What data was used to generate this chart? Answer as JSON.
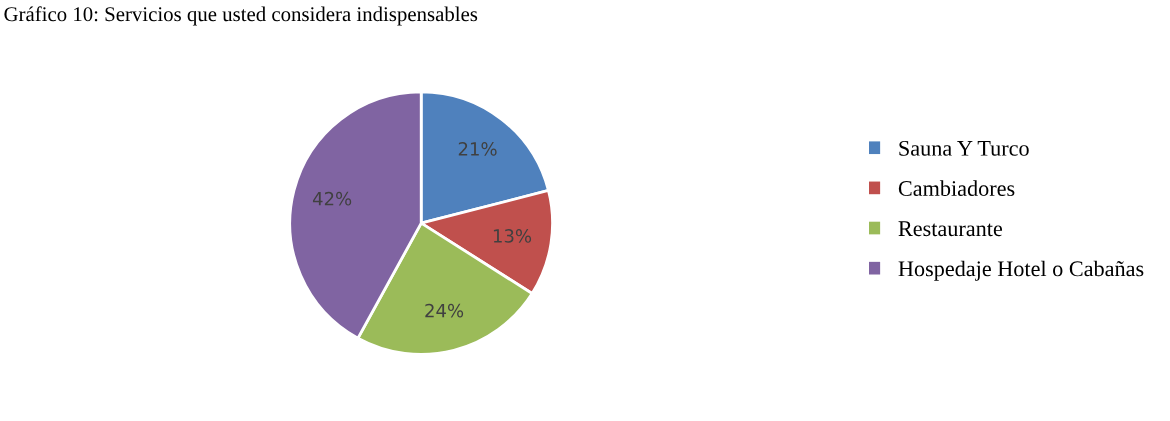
{
  "chart_data": {
    "type": "pie",
    "title": "Gráfico 10: Servicios que usted considera indispensables",
    "categories": [
      "Sauna Y Turco",
      "Cambiadores",
      "Restaurante",
      "Hospedaje Hotel o Cabañas"
    ],
    "values": [
      21,
      13,
      24,
      42
    ],
    "colors": [
      "#4f81bd",
      "#c0504d",
      "#9bbb59",
      "#8064a2"
    ],
    "value_labels": [
      "21%",
      "13%",
      "24%",
      "42%"
    ],
    "legend": "right"
  }
}
